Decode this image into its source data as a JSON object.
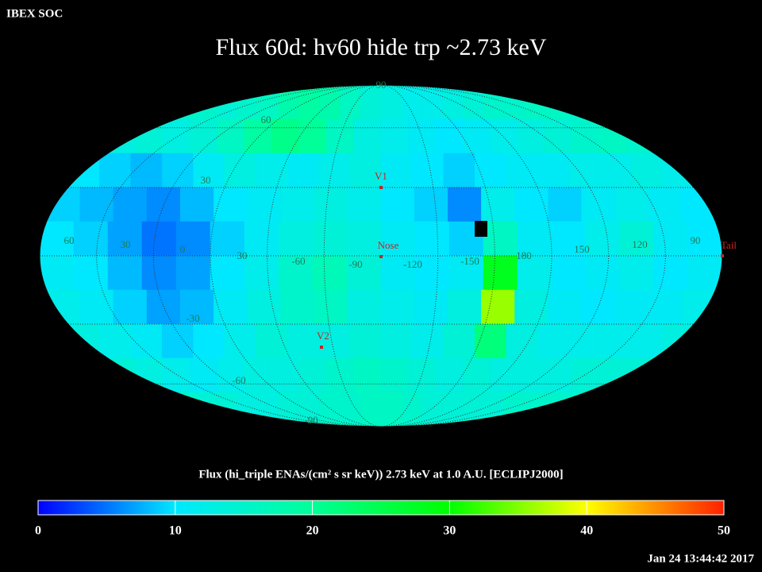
{
  "header": "IBEX SOC",
  "title": "Flux   60d: hv60 hide trp ~2.73 keV",
  "map": {
    "lon_labels": [
      "60",
      "30",
      "0",
      "30",
      "-60",
      "-90",
      "-120",
      "-150",
      "180",
      "150",
      "120",
      "90"
    ],
    "lat_labels": [
      "90",
      "60",
      "30",
      "-30",
      "-60",
      "-90"
    ],
    "markers": [
      "V1",
      "Nose",
      "V2",
      "Tail"
    ],
    "cells": [
      [
        15,
        15,
        14,
        15,
        16,
        18,
        19,
        18,
        16,
        14,
        13,
        12,
        12,
        13,
        14,
        15,
        15,
        16,
        16,
        15
      ],
      [
        13,
        14,
        13,
        14,
        16,
        19,
        21,
        20,
        16,
        13,
        12,
        11,
        10,
        11,
        12,
        13,
        14,
        15,
        16,
        15
      ],
      [
        10,
        9,
        8,
        9,
        11,
        13,
        12,
        11,
        12,
        13,
        11,
        10,
        9,
        10,
        11,
        11,
        12,
        12,
        13,
        12
      ],
      [
        9,
        8,
        7,
        6,
        8,
        10,
        11,
        12,
        13,
        12,
        10,
        9,
        6,
        12,
        10,
        9,
        11,
        12,
        11,
        10
      ],
      [
        10,
        9,
        7,
        5,
        6,
        9,
        11,
        13,
        14,
        13,
        11,
        10,
        9,
        16,
        11,
        10,
        12,
        14,
        11,
        10
      ],
      [
        11,
        10,
        8,
        6,
        7,
        10,
        12,
        15,
        17,
        14,
        11,
        10,
        11,
        28,
        12,
        10,
        11,
        12,
        10,
        11
      ],
      [
        12,
        11,
        9,
        7,
        8,
        11,
        13,
        15,
        16,
        13,
        12,
        11,
        13,
        36,
        13,
        11,
        10,
        11,
        11,
        12
      ],
      [
        13,
        12,
        11,
        9,
        10,
        12,
        14,
        13,
        13,
        14,
        13,
        12,
        14,
        22,
        13,
        12,
        12,
        12,
        12,
        13
      ],
      [
        14,
        13,
        12,
        11,
        12,
        13,
        13,
        14,
        15,
        16,
        15,
        14,
        13,
        14,
        13,
        13,
        13,
        14,
        14,
        14
      ],
      [
        15,
        14,
        14,
        13,
        13,
        14,
        14,
        15,
        15,
        16,
        16,
        15,
        14,
        14,
        14,
        14,
        15,
        15,
        15,
        15
      ]
    ]
  },
  "colorbar": {
    "label": "Flux (hi_triple ENAs/(cm² s sr keV))  2.73 keV at 1.0 A.U. [ECLIPJ2000]",
    "range": [
      0,
      50
    ],
    "ticks": [
      0,
      10,
      20,
      30,
      40,
      50
    ],
    "colormap": [
      "#0000ff",
      "#00e8ff",
      "#00ff99",
      "#00ff00",
      "#ffff00",
      "#ff2000"
    ]
  },
  "timestamp": "Jan 24 13:44:42 2017"
}
